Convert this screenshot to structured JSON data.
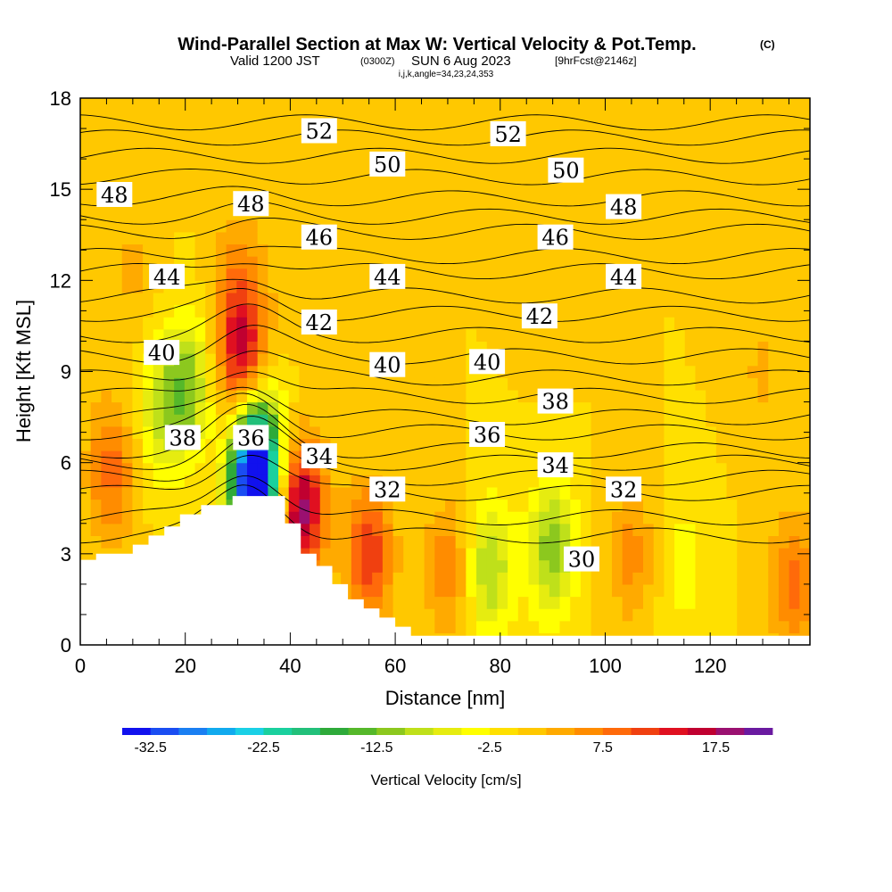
{
  "title": {
    "main": "Wind-Parallel Section at Max W: Vertical Velocity & Pot.Temp.",
    "copyright": "(C)",
    "valid_prefix": "Valid 1200 JST",
    "valid_zulu": "(0300Z)",
    "valid_date": "SUN 6 Aug 2023",
    "forecast": "[9hrFcst@2146z]",
    "indices": "i,j,k,angle=34,23,24,353"
  },
  "chart_data": {
    "type": "heatmap",
    "xlabel": "Distance [nm]",
    "ylabel": "Height [Kft MSL]",
    "xlim": [
      0,
      139
    ],
    "ylim": [
      0,
      18
    ],
    "x_ticks": [
      "0",
      "20",
      "40",
      "60",
      "80",
      "100",
      "120"
    ],
    "x_tick_values": [
      0,
      20,
      40,
      60,
      80,
      100,
      120
    ],
    "y_ticks": [
      "0",
      "3",
      "6",
      "9",
      "12",
      "15",
      "18"
    ],
    "y_tick_values": [
      0,
      3,
      6,
      9,
      12,
      15,
      18
    ],
    "colorbar": {
      "title": "Vertical Velocity [cm/s]",
      "labels": [
        "-32.5",
        "-22.5",
        "-12.5",
        "-2.5",
        "7.5",
        "17.5"
      ],
      "label_values": [
        -32.5,
        -22.5,
        -12.5,
        -2.5,
        7.5,
        17.5
      ],
      "min": -35,
      "max": 20,
      "step": 2.5,
      "colors": [
        "#1111ee",
        "#1a4df2",
        "#1a7ff2",
        "#11aaee",
        "#1ad0e6",
        "#1ad09e",
        "#22c07a",
        "#2eaa3a",
        "#55b82a",
        "#8cc81e",
        "#bfe01a",
        "#e6ec10",
        "#ffff00",
        "#ffe000",
        "#ffc800",
        "#ffaa00",
        "#ff8c00",
        "#ff6a0a",
        "#f04010",
        "#e01020",
        "#c00030",
        "#9a1070",
        "#6a1aa0"
      ]
    },
    "background_value": 0,
    "w_features": [
      {
        "x": 6,
        "y": 5.8,
        "value": 9
      },
      {
        "x": 20,
        "y": 8.5,
        "value": -12
      },
      {
        "x": 15,
        "y": 7.5,
        "value": -6
      },
      {
        "x": 31,
        "y": 9.5,
        "value": 15
      },
      {
        "x": 34,
        "y": 6.5,
        "value": -17
      },
      {
        "x": 33,
        "y": 5.0,
        "value": -32
      },
      {
        "x": 42,
        "y": 4.5,
        "value": 19
      },
      {
        "x": 55,
        "y": 3.0,
        "value": 12
      },
      {
        "x": 70,
        "y": 2.5,
        "value": 7
      },
      {
        "x": 78,
        "y": 2.5,
        "value": -10
      },
      {
        "x": 90,
        "y": 3.2,
        "value": -12
      },
      {
        "x": 105,
        "y": 3.0,
        "value": 6
      },
      {
        "x": 115,
        "y": 2.5,
        "value": -4
      },
      {
        "x": 136,
        "y": 2.0,
        "value": 9
      },
      {
        "x": 30,
        "y": 12.0,
        "value": 6
      },
      {
        "x": 10,
        "y": 12.5,
        "value": 3
      },
      {
        "x": 40,
        "y": 13.0,
        "value": 2
      },
      {
        "x": 90,
        "y": 12.0,
        "value": 2
      },
      {
        "x": 130,
        "y": 9.0,
        "value": 3
      }
    ],
    "terrain": [
      [
        0,
        2.8
      ],
      [
        3,
        2.8
      ],
      [
        3,
        3.0
      ],
      [
        10,
        3.0
      ],
      [
        10,
        3.3
      ],
      [
        13,
        3.3
      ],
      [
        13,
        3.6
      ],
      [
        16,
        3.6
      ],
      [
        16,
        3.9
      ],
      [
        19,
        3.9
      ],
      [
        19,
        4.3
      ],
      [
        23,
        4.3
      ],
      [
        23,
        4.6
      ],
      [
        29,
        4.6
      ],
      [
        29,
        4.9
      ],
      [
        39,
        4.9
      ],
      [
        39,
        4.0
      ],
      [
        42,
        4.0
      ],
      [
        42,
        3.0
      ],
      [
        45,
        3.0
      ],
      [
        45,
        2.6
      ],
      [
        48,
        2.6
      ],
      [
        48,
        2.0
      ],
      [
        51,
        2.0
      ],
      [
        51,
        1.5
      ],
      [
        54,
        1.5
      ],
      [
        54,
        1.2
      ],
      [
        57,
        1.2
      ],
      [
        57,
        0.9
      ],
      [
        60,
        0.9
      ],
      [
        60,
        0.6
      ],
      [
        63,
        0.6
      ],
      [
        63,
        0.3
      ],
      [
        139,
        0.3
      ]
    ],
    "contour_labels": [
      {
        "text": "52",
        "x": 45.5,
        "y": 16.9
      },
      {
        "text": "52",
        "x": 81.5,
        "y": 16.8
      },
      {
        "text": "50",
        "x": 58.5,
        "y": 15.8
      },
      {
        "text": "50",
        "x": 92.5,
        "y": 15.6
      },
      {
        "text": "48",
        "x": 6.5,
        "y": 14.8
      },
      {
        "text": "48",
        "x": 32.5,
        "y": 14.5
      },
      {
        "text": "48",
        "x": 103.5,
        "y": 14.4
      },
      {
        "text": "46",
        "x": 45.5,
        "y": 13.4
      },
      {
        "text": "46",
        "x": 90.5,
        "y": 13.4
      },
      {
        "text": "44",
        "x": 16.5,
        "y": 12.1
      },
      {
        "text": "44",
        "x": 58.5,
        "y": 12.1
      },
      {
        "text": "44",
        "x": 103.5,
        "y": 12.1
      },
      {
        "text": "42",
        "x": 45.5,
        "y": 10.6
      },
      {
        "text": "42",
        "x": 87.5,
        "y": 10.8
      },
      {
        "text": "40",
        "x": 15.5,
        "y": 9.6
      },
      {
        "text": "40",
        "x": 58.5,
        "y": 9.2
      },
      {
        "text": "40",
        "x": 77.5,
        "y": 9.3
      },
      {
        "text": "38",
        "x": 19.5,
        "y": 6.8
      },
      {
        "text": "38",
        "x": 90.5,
        "y": 8.0
      },
      {
        "text": "36",
        "x": 32.5,
        "y": 6.8
      },
      {
        "text": "36",
        "x": 77.5,
        "y": 6.9
      },
      {
        "text": "34",
        "x": 45.5,
        "y": 6.2
      },
      {
        "text": "34",
        "x": 90.5,
        "y": 5.9
      },
      {
        "text": "32",
        "x": 58.5,
        "y": 5.1
      },
      {
        "text": "32",
        "x": 103.5,
        "y": 5.1
      },
      {
        "text": "30",
        "x": 95.5,
        "y": 2.8
      }
    ],
    "isentropes": [
      {
        "theta": 52,
        "y": 17.2
      },
      {
        "theta": 51,
        "y": 16.7
      },
      {
        "theta": 50,
        "y": 16.1
      },
      {
        "theta": 49,
        "y": 15.4
      },
      {
        "theta": 48,
        "y": 14.7
      },
      {
        "theta": 47,
        "y": 14.1
      },
      {
        "theta": 46,
        "y": 13.6
      },
      {
        "theta": 45,
        "y": 12.8
      },
      {
        "theta": 44,
        "y": 12.3
      },
      {
        "theta": 43,
        "y": 11.5
      },
      {
        "theta": 42,
        "y": 10.9
      },
      {
        "theta": 41,
        "y": 10.2
      },
      {
        "theta": 40,
        "y": 9.5
      },
      {
        "theta": 39,
        "y": 8.8
      },
      {
        "theta": 38,
        "y": 8.2
      },
      {
        "theta": 37,
        "y": 7.5
      },
      {
        "theta": 36,
        "y": 7.0
      },
      {
        "theta": 35,
        "y": 6.4
      },
      {
        "theta": 34,
        "y": 6.0
      },
      {
        "theta": 33,
        "y": 5.5
      },
      {
        "theta": 32,
        "y": 5.0
      },
      {
        "theta": 31,
        "y": 4.2
      },
      {
        "theta": 30,
        "y": 3.6
      }
    ]
  }
}
